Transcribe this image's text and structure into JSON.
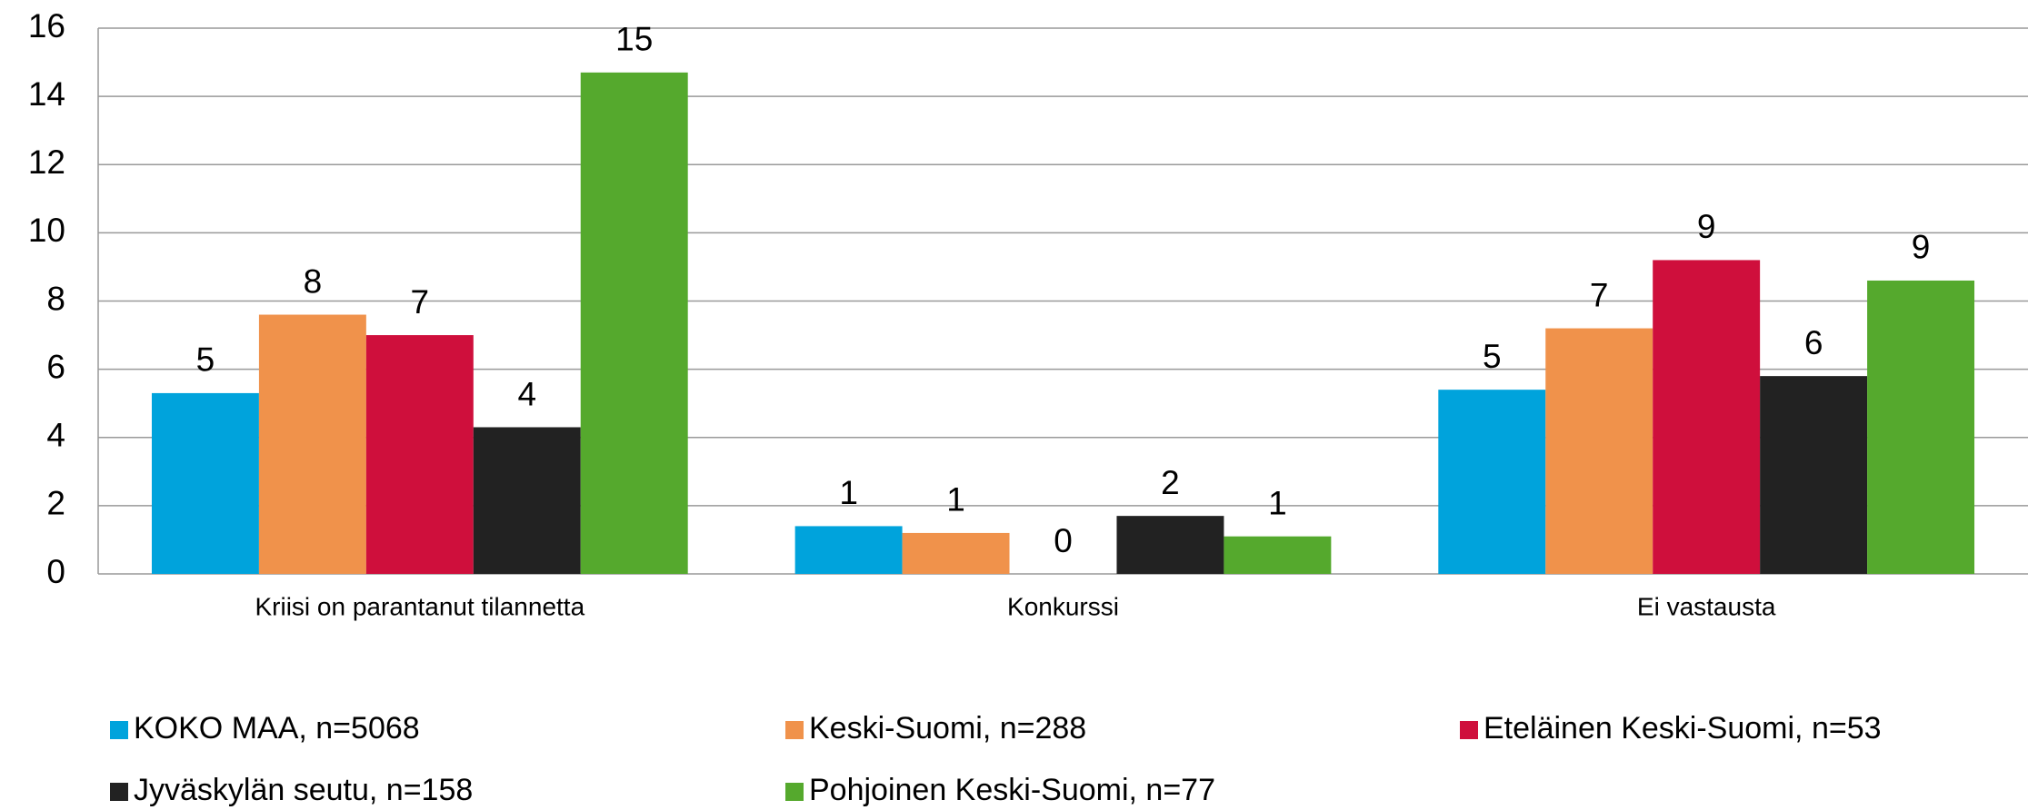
{
  "chart_data": {
    "type": "bar",
    "categories": [
      "Kriisi on parantanut tilannetta",
      "Konkurssi",
      "Ei vastausta"
    ],
    "series": [
      {
        "name": "KOKO MAA, n=5068",
        "color": "#00a3dc",
        "values": [
          5.3,
          1.4,
          5.4
        ],
        "value_labels": [
          "5",
          "1",
          "5"
        ]
      },
      {
        "name": "Keski-Suomi, n=288",
        "color": "#f0924b",
        "values": [
          7.6,
          1.2,
          7.2
        ],
        "value_labels": [
          "8",
          "1",
          "7"
        ]
      },
      {
        "name": "Eteläinen Keski-Suomi, n=53",
        "color": "#cf0f3c",
        "values": [
          7.0,
          0,
          9.2
        ],
        "value_labels": [
          "7",
          "0",
          "9"
        ]
      },
      {
        "name": "Jyväskylän seutu, n=158",
        "color": "#222222",
        "values": [
          4.3,
          1.7,
          5.8
        ],
        "value_labels": [
          "4",
          "2",
          "6"
        ]
      },
      {
        "name": "Pohjoinen Keski-Suomi, n=77",
        "color": "#55a92d",
        "values": [
          14.7,
          1.1,
          8.6
        ],
        "value_labels": [
          "15",
          "1",
          "9"
        ]
      }
    ],
    "ylim": [
      0,
      16
    ],
    "yticks": [
      0,
      2,
      4,
      6,
      8,
      10,
      12,
      14,
      16
    ],
    "grid": true,
    "legend": "bottom"
  }
}
